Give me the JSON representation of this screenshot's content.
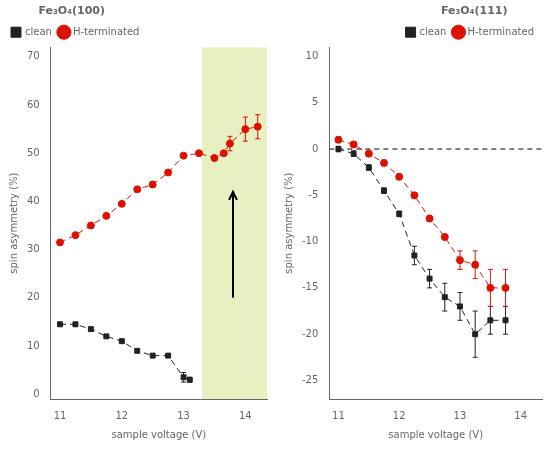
{
  "chart_data": [
    {
      "type": "line",
      "title": "Fe₃O₄(100)",
      "xlabel": "sample voltage (V)",
      "ylabel": "spin asymmetry (%)",
      "xlim": [
        10.85,
        14.35
      ],
      "ylim": [
        -1,
        72
      ],
      "xticks": [
        11,
        12,
        13,
        14
      ],
      "yticks": [
        0,
        10,
        20,
        30,
        40,
        50,
        60,
        70
      ],
      "grid": false,
      "legend": "upper left",
      "series": [
        {
          "name": "clean",
          "color": "#222222",
          "marker": "square",
          "line_style": "dashed",
          "x": [
            11.0,
            11.25,
            11.5,
            11.75,
            12.0,
            12.25,
            12.5,
            12.75,
            13.0,
            13.1
          ],
          "values": [
            14.5,
            14.5,
            13.5,
            12.0,
            11.0,
            9.0,
            8.0,
            8.0,
            3.5,
            3.0
          ],
          "yerr": [
            0.3,
            0.3,
            0.3,
            0.3,
            0.3,
            0.3,
            0.3,
            0.3,
            1.0,
            0.5
          ]
        },
        {
          "name": "H-terminated",
          "color": "#dd1100",
          "marker": "circle",
          "line_style": "dashed",
          "x": [
            11.0,
            11.25,
            11.5,
            11.75,
            12.0,
            12.25,
            12.5,
            12.75,
            13.0,
            13.25,
            13.5,
            13.65,
            13.75,
            14.0,
            14.2
          ],
          "values": [
            31.5,
            33.0,
            35.0,
            37.0,
            39.5,
            42.5,
            43.5,
            46.0,
            49.5,
            50.0,
            49.0,
            50.0,
            52.0,
            55.0,
            55.5
          ],
          "yerr": [
            0.3,
            0.3,
            0.3,
            0.3,
            0.3,
            0.3,
            0.3,
            0.3,
            0.3,
            0.3,
            0.3,
            0.3,
            1.5,
            2.5,
            2.5
          ]
        }
      ],
      "highlight": {
        "xmin": 13.3,
        "xmax": 14.35,
        "color": "#e8efc0"
      },
      "arrow": {
        "x": 13.8,
        "y_tail": 20,
        "y_head": 42
      }
    },
    {
      "type": "line",
      "title": "Fe₃O₄(111)",
      "xlabel": "sample voltage (V)",
      "ylabel": "spin asymmetry (%)",
      "xlim": [
        10.85,
        14.35
      ],
      "ylim": [
        -27,
        11
      ],
      "xticks": [
        11,
        12,
        13,
        14
      ],
      "yticks": [
        -25,
        -20,
        -15,
        -10,
        -5,
        0,
        5,
        10
      ],
      "grid": false,
      "legend": "upper right",
      "hline": 0,
      "series": [
        {
          "name": "clean",
          "color": "#222222",
          "marker": "square",
          "line_style": "dashed",
          "x": [
            11.0,
            11.25,
            11.5,
            11.75,
            12.0,
            12.25,
            12.5,
            12.75,
            13.0,
            13.25,
            13.5,
            13.75
          ],
          "values": [
            0.0,
            -0.5,
            -2.0,
            -4.5,
            -7.0,
            -11.5,
            -14.0,
            -16.0,
            -17.0,
            -20.0,
            -18.5,
            -18.5
          ],
          "yerr": [
            0.3,
            0.3,
            0.3,
            0.3,
            0.3,
            1.0,
            1.0,
            1.5,
            1.5,
            2.5,
            1.5,
            1.5
          ]
        },
        {
          "name": "H-terminated",
          "color": "#dd1100",
          "marker": "circle",
          "line_style": "dashed",
          "x": [
            11.0,
            11.25,
            11.5,
            11.75,
            12.0,
            12.25,
            12.5,
            12.75,
            13.0,
            13.25,
            13.5,
            13.75
          ],
          "values": [
            1.0,
            0.5,
            -0.5,
            -1.5,
            -3.0,
            -5.0,
            -7.5,
            -9.5,
            -12.0,
            -12.5,
            -15.0,
            -15.0
          ],
          "yerr": [
            0.3,
            0.3,
            0.3,
            0.3,
            0.3,
            0.3,
            0.3,
            0.3,
            1.0,
            1.5,
            2.0,
            2.0
          ]
        }
      ]
    }
  ]
}
